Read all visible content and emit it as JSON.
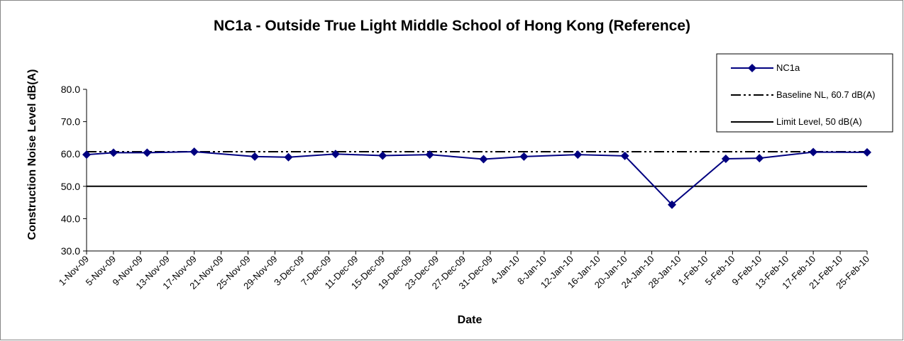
{
  "chart_data": {
    "type": "line",
    "title": "NC1a - Outside True Light Middle School of Hong Kong (Reference)",
    "x_label": "Date",
    "y_label": "Construction Noise Level  dB(A)",
    "x": [
      "2009-11-01",
      "2009-11-05",
      "2009-11-10",
      "2009-11-17",
      "2009-11-26",
      "2009-12-01",
      "2009-12-08",
      "2009-12-15",
      "2009-12-22",
      "2009-12-30",
      "2010-01-05",
      "2010-01-13",
      "2010-01-20",
      "2010-01-27",
      "2010-02-04",
      "2010-02-09",
      "2010-02-17",
      "2010-02-25"
    ],
    "series": [
      {
        "name": "NC1a",
        "color": "#000080",
        "marker": "diamond",
        "values": [
          59.8,
          60.4,
          60.4,
          60.7,
          59.2,
          59.0,
          60.0,
          59.5,
          59.8,
          58.4,
          59.2,
          59.8,
          59.4,
          44.3,
          58.5,
          58.7,
          60.6,
          60.5
        ]
      }
    ],
    "reference_lines": [
      {
        "name": "Baseline NL, 60.7 dB(A)",
        "value": 60.7,
        "color": "#000000",
        "style": "dash-dot"
      },
      {
        "name": "Limit Level, 50 dB(A)",
        "value": 50,
        "color": "#000000",
        "style": "solid"
      }
    ],
    "xlim": [
      "2009-11-01",
      "2010-02-25"
    ],
    "xticks": [
      {
        "value": "2009-11-01",
        "label": "1-Nov-09"
      },
      {
        "value": "2009-11-05",
        "label": "5-Nov-09"
      },
      {
        "value": "2009-11-09",
        "label": "9-Nov-09"
      },
      {
        "value": "2009-11-13",
        "label": "13-Nov-09"
      },
      {
        "value": "2009-11-17",
        "label": "17-Nov-09"
      },
      {
        "value": "2009-11-21",
        "label": "21-Nov-09"
      },
      {
        "value": "2009-11-25",
        "label": "25-Nov-09"
      },
      {
        "value": "2009-11-29",
        "label": "29-Nov-09"
      },
      {
        "value": "2009-12-03",
        "label": "3-Dec-09"
      },
      {
        "value": "2009-12-07",
        "label": "7-Dec-09"
      },
      {
        "value": "2009-12-11",
        "label": "11-Dec-09"
      },
      {
        "value": "2009-12-15",
        "label": "15-Dec-09"
      },
      {
        "value": "2009-12-19",
        "label": "19-Dec-09"
      },
      {
        "value": "2009-12-23",
        "label": "23-Dec-09"
      },
      {
        "value": "2009-12-27",
        "label": "27-Dec-09"
      },
      {
        "value": "2009-12-31",
        "label": "31-Dec-09"
      },
      {
        "value": "2010-01-04",
        "label": "4-Jan-10"
      },
      {
        "value": "2010-01-08",
        "label": "8-Jan-10"
      },
      {
        "value": "2010-01-12",
        "label": "12-Jan-10"
      },
      {
        "value": "2010-01-16",
        "label": "16-Jan-10"
      },
      {
        "value": "2010-01-20",
        "label": "20-Jan-10"
      },
      {
        "value": "2010-01-24",
        "label": "24-Jan-10"
      },
      {
        "value": "2010-01-28",
        "label": "28-Jan-10"
      },
      {
        "value": "2010-02-01",
        "label": "1-Feb-10"
      },
      {
        "value": "2010-02-05",
        "label": "5-Feb-10"
      },
      {
        "value": "2010-02-09",
        "label": "9-Feb-10"
      },
      {
        "value": "2010-02-13",
        "label": "13-Feb-10"
      },
      {
        "value": "2010-02-17",
        "label": "17-Feb-10"
      },
      {
        "value": "2010-02-21",
        "label": "21-Feb-10"
      },
      {
        "value": "2010-02-25",
        "label": "25-Feb-10"
      }
    ],
    "ylim": [
      30,
      80
    ],
    "yticks": [
      {
        "value": 30,
        "label": "30.0"
      },
      {
        "value": 40,
        "label": "40.0"
      },
      {
        "value": 50,
        "label": "50.0"
      },
      {
        "value": 60,
        "label": "60.0"
      },
      {
        "value": 70,
        "label": "70.0"
      },
      {
        "value": 80,
        "label": "80.0"
      }
    ],
    "grid": false,
    "legend_position": "upper right"
  }
}
